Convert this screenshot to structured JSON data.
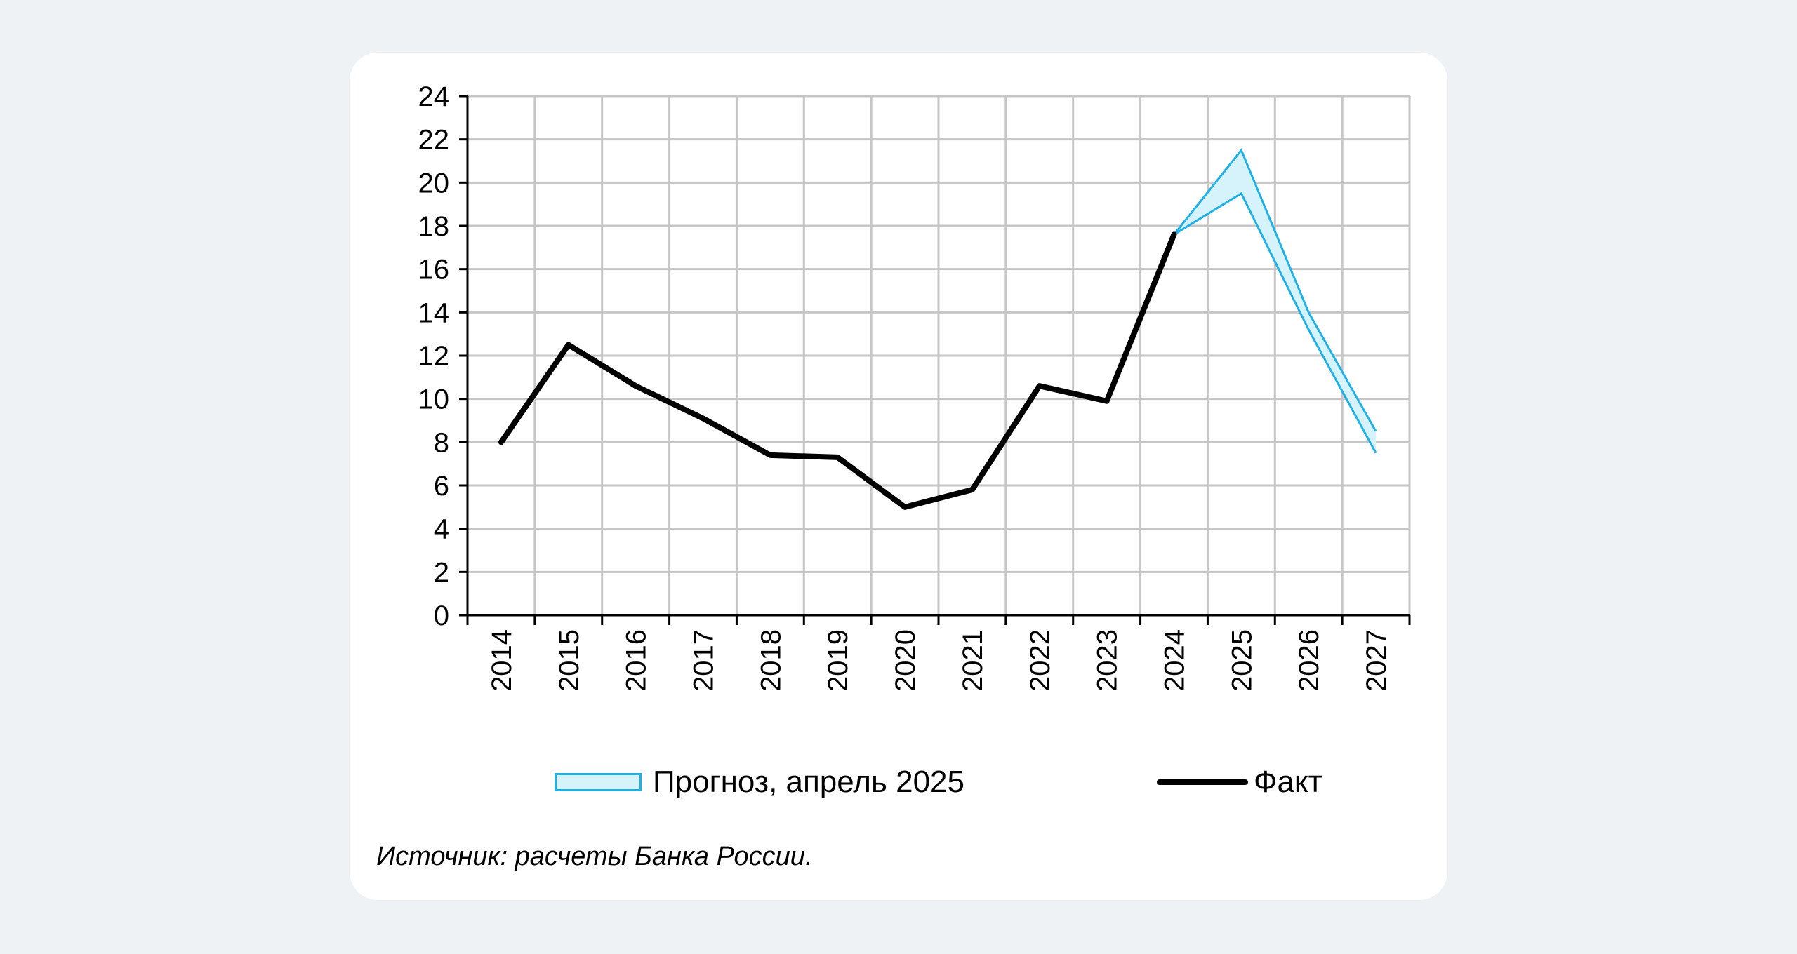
{
  "chart_data": {
    "type": "line",
    "title": "",
    "xlabel": "",
    "ylabel": "",
    "categories": [
      "2014",
      "2015",
      "2016",
      "2017",
      "2018",
      "2019",
      "2020",
      "2021",
      "2022",
      "2023",
      "2024",
      "2025",
      "2026",
      "2027"
    ],
    "ylim": [
      0,
      24
    ],
    "yticks": [
      "0",
      "2",
      "4",
      "6",
      "8",
      "10",
      "12",
      "14",
      "16",
      "18",
      "20",
      "22",
      "24"
    ],
    "grid": true,
    "legend_position": "bottom",
    "series": [
      {
        "name": "Факт",
        "type": "line",
        "color": "#000000",
        "x": [
          "2014",
          "2015",
          "2016",
          "2017",
          "2018",
          "2019",
          "2020",
          "2021",
          "2022",
          "2023",
          "2024"
        ],
        "values": [
          8.0,
          12.5,
          10.6,
          9.1,
          7.4,
          7.3,
          5.0,
          5.8,
          10.6,
          9.9,
          17.6
        ]
      },
      {
        "name": "Прогноз, апрель 2025",
        "type": "band",
        "color": "#1fb1e6",
        "fill": "#d6f3fb",
        "x": [
          "2024",
          "2025",
          "2026",
          "2027"
        ],
        "lower": [
          17.6,
          19.5,
          13.2,
          7.5
        ],
        "upper": [
          17.6,
          21.5,
          14.0,
          8.5
        ]
      }
    ]
  },
  "legend": {
    "forecast_label": "Прогноз, апрель 2025",
    "fact_label": "Факт"
  },
  "source_text": "Источник: расчеты Банка России."
}
